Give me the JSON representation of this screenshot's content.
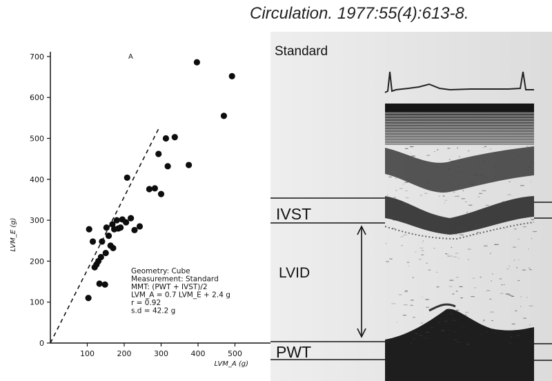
{
  "citation": "Circulation. 1977:55(4):613-8.",
  "panel_letter": "A",
  "chart_data": {
    "type": "scatter",
    "xlabel": "LVM_A (g)",
    "ylabel": "LVM_E (g)",
    "xlim": [
      0,
      520
    ],
    "ylim": [
      0,
      720
    ],
    "x_ticks": [
      100,
      200,
      300,
      400,
      500
    ],
    "y_ticks": [
      0,
      100,
      200,
      300,
      400,
      500,
      600,
      700
    ],
    "grid": false,
    "points": [
      {
        "x": 103,
        "y": 110
      },
      {
        "x": 105,
        "y": 278
      },
      {
        "x": 115,
        "y": 248
      },
      {
        "x": 120,
        "y": 185
      },
      {
        "x": 125,
        "y": 192
      },
      {
        "x": 130,
        "y": 200
      },
      {
        "x": 133,
        "y": 145
      },
      {
        "x": 137,
        "y": 210
      },
      {
        "x": 140,
        "y": 248
      },
      {
        "x": 148,
        "y": 143
      },
      {
        "x": 150,
        "y": 220
      },
      {
        "x": 152,
        "y": 282
      },
      {
        "x": 158,
        "y": 262
      },
      {
        "x": 163,
        "y": 238
      },
      {
        "x": 168,
        "y": 290
      },
      {
        "x": 170,
        "y": 232
      },
      {
        "x": 173,
        "y": 278
      },
      {
        "x": 180,
        "y": 300
      },
      {
        "x": 184,
        "y": 280
      },
      {
        "x": 190,
        "y": 282
      },
      {
        "x": 195,
        "y": 302
      },
      {
        "x": 205,
        "y": 295
      },
      {
        "x": 208,
        "y": 404
      },
      {
        "x": 218,
        "y": 305
      },
      {
        "x": 228,
        "y": 276
      },
      {
        "x": 242,
        "y": 285
      },
      {
        "x": 268,
        "y": 376
      },
      {
        "x": 283,
        "y": 378
      },
      {
        "x": 293,
        "y": 462
      },
      {
        "x": 300,
        "y": 364
      },
      {
        "x": 313,
        "y": 500
      },
      {
        "x": 318,
        "y": 432
      },
      {
        "x": 337,
        "y": 503
      },
      {
        "x": 375,
        "y": 435
      },
      {
        "x": 397,
        "y": 686
      },
      {
        "x": 470,
        "y": 555
      },
      {
        "x": 492,
        "y": 652
      }
    ],
    "reference_line": {
      "style": "dashed",
      "from": [
        0,
        0
      ],
      "to": [
        530,
        530
      ]
    },
    "legend": [
      "Geometry: Cube",
      "Measurement:  Standard",
      "MMT: (PWT + IVST)/2",
      "LVM_A = 0.7 LVM_E + 2.4 g",
      "r = 0.92",
      "s.d = 42.2 g"
    ]
  },
  "echo_panel": {
    "title": "Standard",
    "labels": [
      "IVST",
      "LVID",
      "PWT"
    ]
  }
}
